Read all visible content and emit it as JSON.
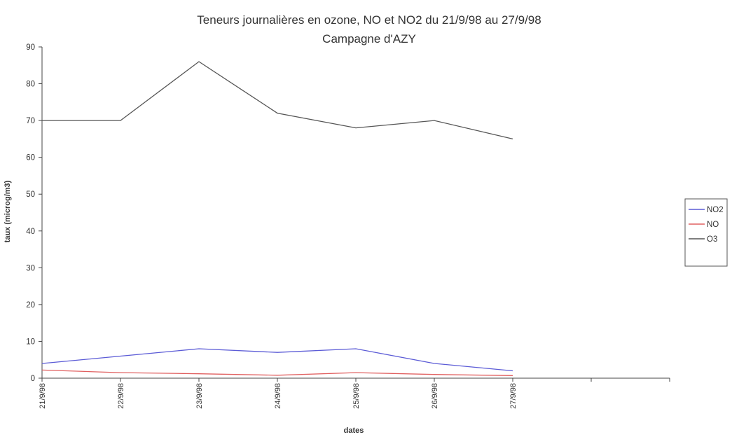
{
  "chart_data": {
    "type": "line",
    "title": "Teneurs journalières en ozone, NO et NO2 du  21/9/98 au  27/9/98",
    "subtitle": "Campagne d'AZY",
    "xlabel": "dates",
    "ylabel": "taux (microg/m3)",
    "categories": [
      "21/9/98",
      "22/9/98",
      "23/9/98",
      "24/9/98",
      "25/9/98",
      "26/9/98",
      "27/9/98"
    ],
    "ylim": [
      0,
      90
    ],
    "yticks": [
      0,
      10,
      20,
      30,
      40,
      50,
      60,
      70,
      80,
      90
    ],
    "grid": false,
    "legend_position": "right",
    "series": [
      {
        "name": "NO2",
        "color": "#5b5bd6",
        "values": [
          4,
          6,
          8,
          7,
          8,
          4,
          2
        ]
      },
      {
        "name": "NO",
        "color": "#e06060",
        "values": [
          2.2,
          1.5,
          1.2,
          0.8,
          1.5,
          1.0,
          0.7
        ]
      },
      {
        "name": "O3",
        "color": "#555555",
        "values": [
          70,
          70,
          86,
          72,
          68,
          70,
          65
        ]
      }
    ]
  }
}
